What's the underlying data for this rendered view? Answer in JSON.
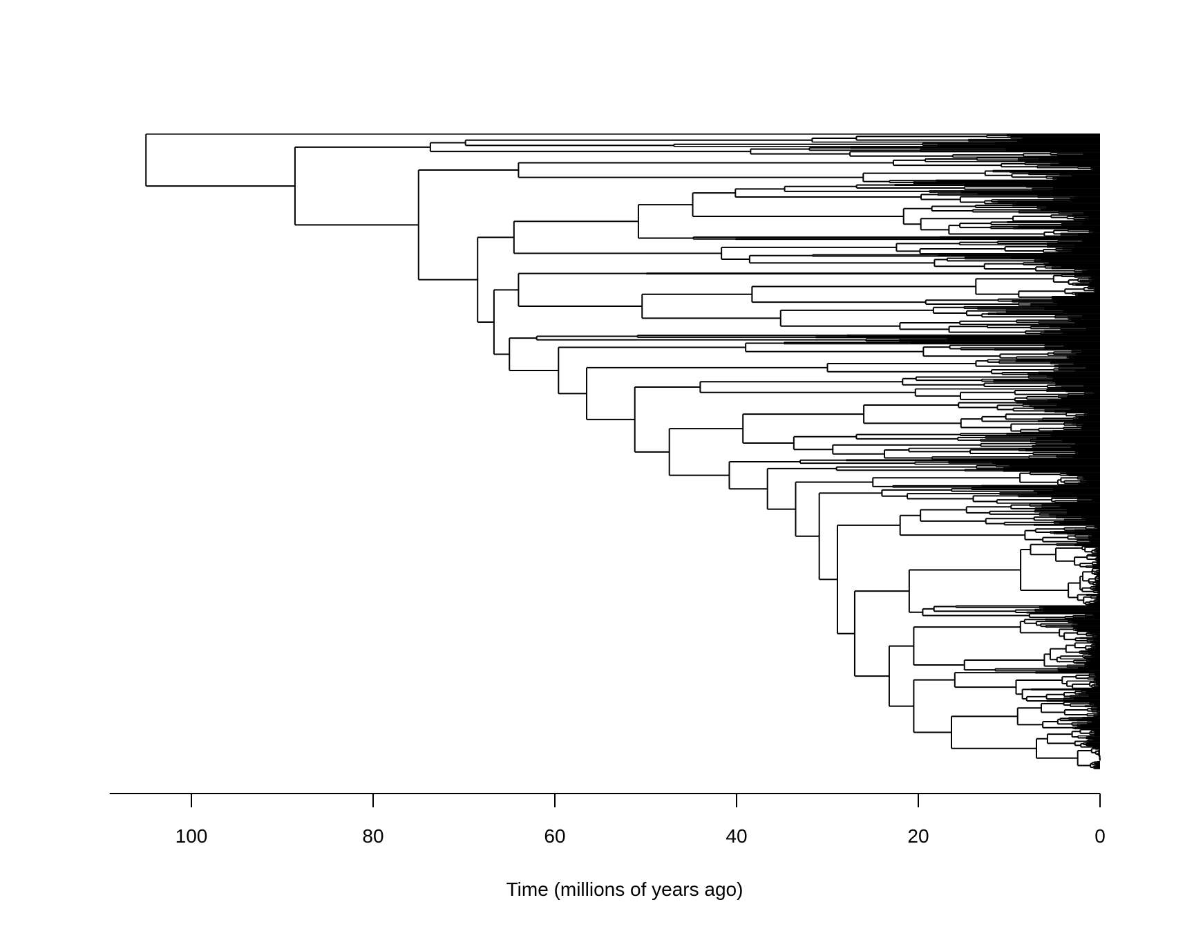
{
  "chart_data": {
    "type": "tree",
    "title": "",
    "xlabel": "Time (millions of years ago)",
    "ylabel": "",
    "xlim": [
      109,
      0
    ],
    "x_reversed": true,
    "xticks": [
      100,
      80,
      60,
      40,
      20,
      0
    ],
    "xtick_labels": [
      "100",
      "80",
      "60",
      "40",
      "20",
      "0"
    ],
    "grid": false,
    "line_color": "#000000",
    "root_age": 105,
    "backbone": [
      105,
      {
        "tips": 1
      },
      [
        88.6,
        {
          "clade_age": 73.7,
          "tips": 26
        },
        [
          75,
          {
            "clade_age": 64,
            "tips": 30
          },
          [
            68.5,
            {
              "clade_age": 64.5,
              "tips": 100
            },
            [
              66.7,
              {
                "clade_age": 64,
                "tips": 70
              },
              [
                65,
                {
                  "clade_age": 62,
                  "tips": 8
                },
                [
                  59.6,
                  {
                    "clade_age": 39,
                    "tips": 20
                  },
                  [
                    56.5,
                    {
                      "clade_age": 30,
                      "tips": 18
                    },
                    [
                      51.2,
                      {
                        "clade_age": 44,
                        "tips": 30
                      },
                      [
                        47.4,
                        [
                          39.3,
                          {
                            "clade_age": 26,
                            "tips": 35
                          },
                          {
                            "clade_age": 33.7,
                            "tips": 30
                          }
                        ],
                        [
                          40.8,
                          {
                            "clade_age": 33,
                            "tips": 6
                          },
                          [
                            36.6,
                            {
                              "clade_age": 29,
                              "tips": 8
                            },
                            [
                              33.5,
                              {
                                "clade_age": 25,
                                "tips": 18
                              },
                              [
                                30.9,
                                {
                                  "clade_age": 24,
                                  "tips": 18
                                },
                                [
                                  28.9,
                                  {
                                    "clade_age": 22,
                                    "tips": 45
                                  },
                                  [
                                    27,
                                    {
                                      "clade_age": 21,
                                      "tips": 85
                                    },
                                    [
                                      23.2,
                                      {
                                        "clade_age": 20.5,
                                        "tips": 60
                                      },
                                      {
                                        "clade_age": 20.5,
                                        "tips": 110
                                      }
                                    ]
                                  ]
                                ]
                              ]
                            ]
                          ]
                        ]
                      ]
                    ]
                  ]
                ]
              ]
            ]
          ]
        ]
      ]
    ]
  }
}
